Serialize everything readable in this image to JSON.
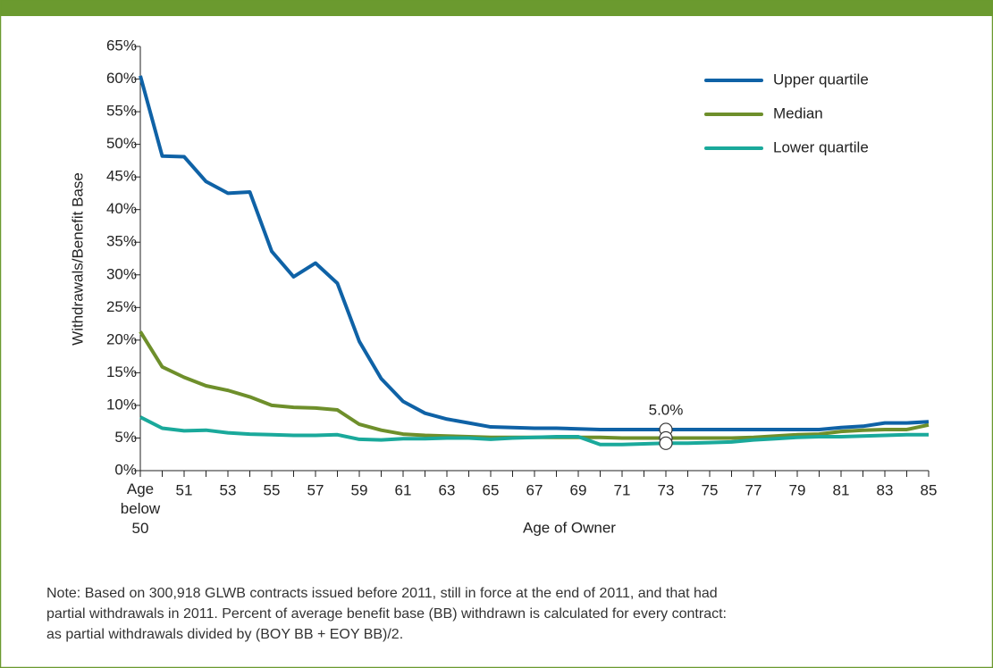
{
  "chart_data": {
    "type": "line",
    "y_label": "Withdrawals/Benefit Base",
    "x_label": "Age of Owner",
    "categories": [
      "Age below 50",
      null,
      "51",
      null,
      "53",
      null,
      "55",
      null,
      "57",
      null,
      "59",
      null,
      "61",
      null,
      "63",
      null,
      "65",
      null,
      "67",
      null,
      "69",
      null,
      "71",
      null,
      "73",
      null,
      "75",
      null,
      "77",
      null,
      "79",
      null,
      "81",
      null,
      "83",
      null,
      "85"
    ],
    "series": [
      {
        "name": "Upper quartile",
        "color": "#0f62a6",
        "values": [
          60.5,
          48.2,
          48.1,
          44.3,
          42.5,
          42.7,
          33.6,
          29.7,
          31.8,
          28.7,
          19.8,
          14.1,
          10.6,
          8.8,
          7.9,
          7.3,
          6.7,
          6.6,
          6.5,
          6.5,
          6.4,
          6.3,
          6.3,
          6.3,
          6.3,
          6.3,
          6.3,
          6.3,
          6.3,
          6.3,
          6.3,
          6.3,
          6.6,
          6.8,
          7.3,
          7.3,
          7.5
        ]
      },
      {
        "name": "Median",
        "color": "#6e8f2b",
        "values": [
          21.3,
          15.9,
          14.3,
          13.0,
          12.3,
          11.3,
          10.0,
          9.7,
          9.6,
          9.3,
          7.1,
          6.2,
          5.6,
          5.4,
          5.3,
          5.2,
          5.1,
          5.1,
          5.1,
          5.1,
          5.1,
          5.1,
          5.0,
          5.0,
          5.0,
          5.0,
          5.0,
          5.0,
          5.1,
          5.3,
          5.5,
          5.6,
          6.0,
          6.2,
          6.3,
          6.3,
          7.0
        ]
      },
      {
        "name": "Lower quartile",
        "color": "#1aa99b",
        "values": [
          8.2,
          6.5,
          6.1,
          6.2,
          5.8,
          5.6,
          5.5,
          5.4,
          5.4,
          5.5,
          4.8,
          4.7,
          4.9,
          4.9,
          5.0,
          5.0,
          4.8,
          5.0,
          5.1,
          5.2,
          5.2,
          4.0,
          4.0,
          4.1,
          4.2,
          4.2,
          4.3,
          4.4,
          4.7,
          4.9,
          5.1,
          5.2,
          5.2,
          5.3,
          5.4,
          5.5,
          5.5
        ]
      }
    ],
    "annotation": "5.0%",
    "ylim": [
      0,
      65
    ],
    "yticks": [
      {
        "value": 0,
        "label": "0%"
      },
      {
        "value": 5,
        "label": "5%"
      },
      {
        "value": 10,
        "label": "10%"
      },
      {
        "value": 15,
        "label": "15%"
      },
      {
        "value": 20,
        "label": "20%"
      },
      {
        "value": 25,
        "label": "25%"
      },
      {
        "value": 30,
        "label": "30%"
      },
      {
        "value": 35,
        "label": "35%"
      },
      {
        "value": 40,
        "label": "40%"
      },
      {
        "value": 45,
        "label": "45%"
      },
      {
        "value": 50,
        "label": "50%"
      },
      {
        "value": 55,
        "label": "55%"
      },
      {
        "value": 60,
        "label": "60%"
      },
      {
        "value": 65,
        "label": "65%"
      }
    ],
    "legend": "upper right",
    "note": [
      "Note: Based on 300,918 GLWB contracts issued before 2011, still in force at the end of 2011, and that had",
      "partial withdrawals in 2011. Percent of average benefit base (BB) withdrawn is calculated for every contract:",
      "as partial withdrawals divided by (BOY BB + EOY BB)/2."
    ]
  }
}
